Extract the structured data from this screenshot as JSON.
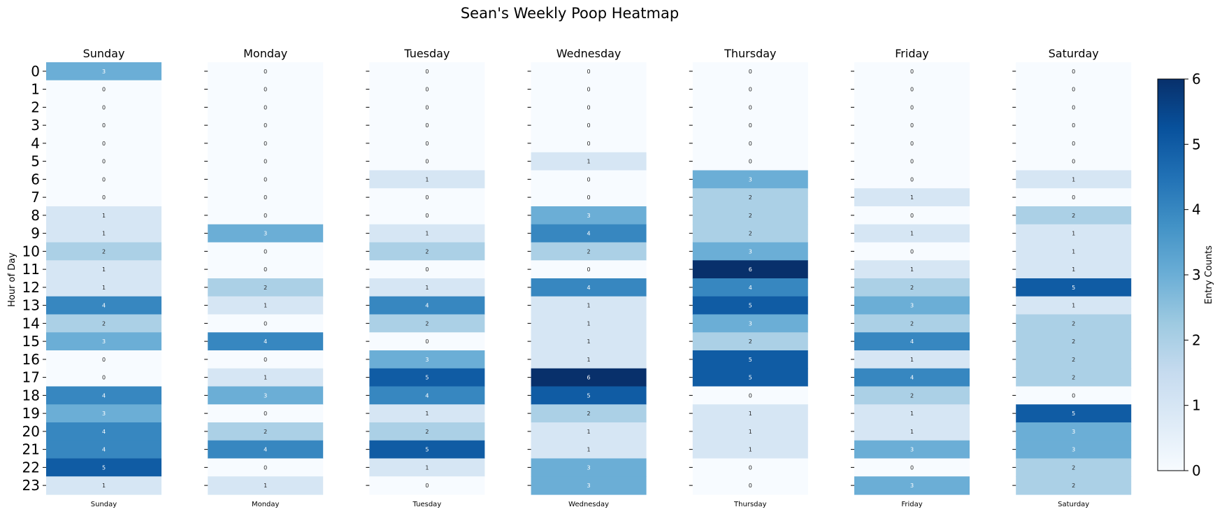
{
  "chart_data": {
    "type": "heatmap",
    "title": "Sean's Weekly Poop Heatmap",
    "ylabel": "Hour of Day",
    "colorbar_label": "Entry Counts",
    "colorbar_ticks": [
      "0",
      "1",
      "2",
      "3",
      "4",
      "5",
      "6"
    ],
    "vmin": 0,
    "vmax": 6,
    "colormap": "Blues",
    "hours": [
      "0",
      "1",
      "2",
      "3",
      "4",
      "5",
      "6",
      "7",
      "8",
      "9",
      "10",
      "11",
      "12",
      "13",
      "14",
      "15",
      "16",
      "17",
      "18",
      "19",
      "20",
      "21",
      "22",
      "23"
    ],
    "days": [
      {
        "name": "Sunday",
        "values": [
          3,
          0,
          0,
          0,
          0,
          0,
          0,
          0,
          1,
          1,
          2,
          1,
          1,
          4,
          2,
          3,
          0,
          0,
          4,
          3,
          4,
          4,
          5,
          1
        ]
      },
      {
        "name": "Monday",
        "values": [
          0,
          0,
          0,
          0,
          0,
          0,
          0,
          0,
          0,
          3,
          0,
          0,
          2,
          1,
          0,
          4,
          0,
          1,
          3,
          0,
          2,
          4,
          0,
          1
        ]
      },
      {
        "name": "Tuesday",
        "values": [
          0,
          0,
          0,
          0,
          0,
          0,
          1,
          0,
          0,
          1,
          2,
          0,
          1,
          4,
          2,
          0,
          3,
          5,
          4,
          1,
          2,
          5,
          1,
          0
        ]
      },
      {
        "name": "Wednesday",
        "values": [
          0,
          0,
          0,
          0,
          0,
          1,
          0,
          0,
          3,
          4,
          2,
          0,
          4,
          1,
          1,
          1,
          1,
          6,
          5,
          2,
          1,
          1,
          3,
          3
        ]
      },
      {
        "name": "Thursday",
        "values": [
          0,
          0,
          0,
          0,
          0,
          0,
          3,
          2,
          2,
          2,
          3,
          6,
          4,
          5,
          3,
          2,
          5,
          5,
          0,
          1,
          1,
          1,
          0,
          0
        ]
      },
      {
        "name": "Friday",
        "values": [
          0,
          0,
          0,
          0,
          0,
          0,
          0,
          1,
          0,
          1,
          0,
          1,
          2,
          3,
          2,
          4,
          1,
          4,
          2,
          1,
          1,
          3,
          0,
          3
        ]
      },
      {
        "name": "Saturday",
        "values": [
          0,
          0,
          0,
          0,
          0,
          0,
          1,
          0,
          2,
          1,
          1,
          1,
          5,
          1,
          2,
          2,
          2,
          2,
          0,
          5,
          3,
          3,
          2,
          2
        ]
      }
    ]
  }
}
